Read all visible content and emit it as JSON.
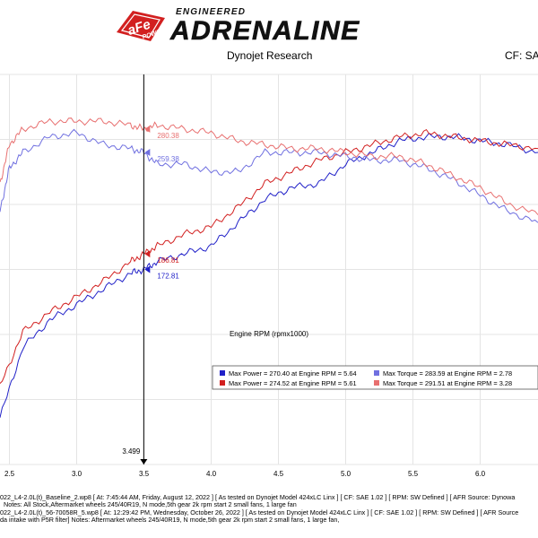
{
  "header": {
    "brand_small": "ENGINEERED",
    "brand_main": "ADRENALINE",
    "logo_text_main": "aFe",
    "logo_text_sub": "POWER",
    "research_title": "Dynojet Research",
    "cf_label": "CF: SA"
  },
  "colors": {
    "baseline_power": "#2020c8",
    "tuned_power": "#d22020",
    "baseline_torque": "#7070e0",
    "tuned_torque": "#e87070",
    "cursor": "#000000"
  },
  "chart_data": {
    "type": "line",
    "xlabel": "Engine RPM (rpmx1000)",
    "xlim": [
      2.43,
      6.43
    ],
    "ylim": [
      0,
      1
    ],
    "x_ticks": [
      "2.5",
      "3.0",
      "3.5",
      "4.0",
      "4.5",
      "5.0",
      "5.5",
      "6.0"
    ],
    "x_tick_values": [
      2.5,
      3.0,
      3.5,
      4.0,
      4.5,
      5.0,
      5.5,
      6.0
    ],
    "cursor": {
      "x": 3.499,
      "label": "3.499"
    },
    "series": [
      {
        "name": "Baseline Power",
        "role": "baseline_power",
        "x": [
          2.43,
          2.6,
          2.8,
          3.0,
          3.2,
          3.4,
          3.499,
          3.6,
          3.8,
          4.0,
          4.2,
          4.4,
          4.6,
          4.8,
          5.0,
          5.2,
          5.4,
          5.6,
          5.8,
          6.0,
          6.2,
          6.43
        ],
        "y": [
          0.12,
          0.3,
          0.37,
          0.41,
          0.45,
          0.49,
          0.5,
          0.52,
          0.54,
          0.56,
          0.62,
          0.68,
          0.71,
          0.72,
          0.77,
          0.8,
          0.83,
          0.84,
          0.84,
          0.83,
          0.82,
          0.8
        ]
      },
      {
        "name": "Tuned Power",
        "role": "tuned_power",
        "x": [
          2.43,
          2.6,
          2.8,
          3.0,
          3.2,
          3.4,
          3.499,
          3.6,
          3.8,
          4.0,
          4.2,
          4.4,
          4.6,
          4.8,
          5.0,
          5.2,
          5.4,
          5.6,
          5.8,
          6.0,
          6.2,
          6.43
        ],
        "y": [
          0.2,
          0.34,
          0.39,
          0.43,
          0.47,
          0.52,
          0.54,
          0.56,
          0.59,
          0.61,
          0.66,
          0.72,
          0.75,
          0.78,
          0.8,
          0.82,
          0.84,
          0.85,
          0.84,
          0.83,
          0.82,
          0.81
        ]
      },
      {
        "name": "Baseline Torque",
        "role": "baseline_torque",
        "x": [
          2.43,
          2.5,
          2.6,
          2.8,
          3.0,
          3.2,
          3.4,
          3.499,
          3.6,
          3.8,
          4.0,
          4.2,
          4.4,
          4.6,
          4.8,
          5.0,
          5.2,
          5.4,
          5.6,
          5.8,
          6.0,
          6.2,
          6.43
        ],
        "y": [
          0.65,
          0.76,
          0.8,
          0.84,
          0.85,
          0.82,
          0.81,
          0.8,
          0.77,
          0.77,
          0.75,
          0.75,
          0.8,
          0.8,
          0.8,
          0.79,
          0.78,
          0.78,
          0.76,
          0.73,
          0.69,
          0.65,
          0.62
        ]
      },
      {
        "name": "Tuned Torque",
        "role": "tuned_torque",
        "x": [
          2.43,
          2.5,
          2.6,
          2.8,
          3.0,
          3.2,
          3.4,
          3.499,
          3.6,
          3.8,
          4.0,
          4.2,
          4.4,
          4.6,
          4.8,
          5.0,
          5.2,
          5.4,
          5.6,
          5.8,
          6.0,
          6.2,
          6.43
        ],
        "y": [
          0.72,
          0.82,
          0.86,
          0.88,
          0.88,
          0.88,
          0.87,
          0.86,
          0.87,
          0.86,
          0.85,
          0.83,
          0.82,
          0.81,
          0.81,
          0.8,
          0.79,
          0.79,
          0.77,
          0.74,
          0.71,
          0.67,
          0.64
        ]
      }
    ],
    "cursor_labels": [
      {
        "text": "280.38",
        "role": "tuned_torque",
        "y": 0.86
      },
      {
        "text": "259.38",
        "role": "baseline_torque",
        "y": 0.8
      },
      {
        "text": "186.81",
        "role": "tuned_power",
        "y": 0.54
      },
      {
        "text": "172.81",
        "role": "baseline_power",
        "y": 0.5
      }
    ],
    "legend": {
      "placement": "bottom-right",
      "rows": [
        [
          {
            "text": "Max Power = 270.40 at Engine RPM = 5.64",
            "role": "baseline_power"
          },
          {
            "text": "Max Torque = 283.59 at Engine RPM = 2.78",
            "role": "baseline_torque"
          }
        ],
        [
          {
            "text": "Max Power = 274.52 at Engine RPM = 5.61",
            "role": "tuned_power"
          },
          {
            "text": "Max Torque = 291.51 at Engine RPM = 3.28",
            "role": "tuned_torque"
          }
        ]
      ]
    },
    "grid": true
  },
  "footer": {
    "line1": "022_L4-2.0L(t)_Baseline_2.wp8 [ At: 7:45:44 AM, Friday, August 12, 2022 ] [ As tested on Dynojet Model 424xLC Linx ] [ CF: SAE 1.02 ] [ RPM: SW Defined ] [ AFR Source: Dynowa",
    "line2": "Notes: All Stock,Aftermarket wheels 245/40R19, N mode,5th gear 2k rpm start 2 small fans, 1 large fan",
    "line3": "022_L4-2.0L(t)_56-70058R_5.wp8 [ At: 12:29:42 PM, Wednesday, October 26, 2022 ] [ As tested on Dynojet Model 424xLC Linx ] [ CF: SAE 1.02 ] [ RPM: SW Defined ] [ AFR Source",
    "line4": "da intake with P5R filter]  Notes: Aftermarket wheels 245/40R19, N mode,5th gear 2k rpm start 2 small fans, 1 large fan,"
  }
}
